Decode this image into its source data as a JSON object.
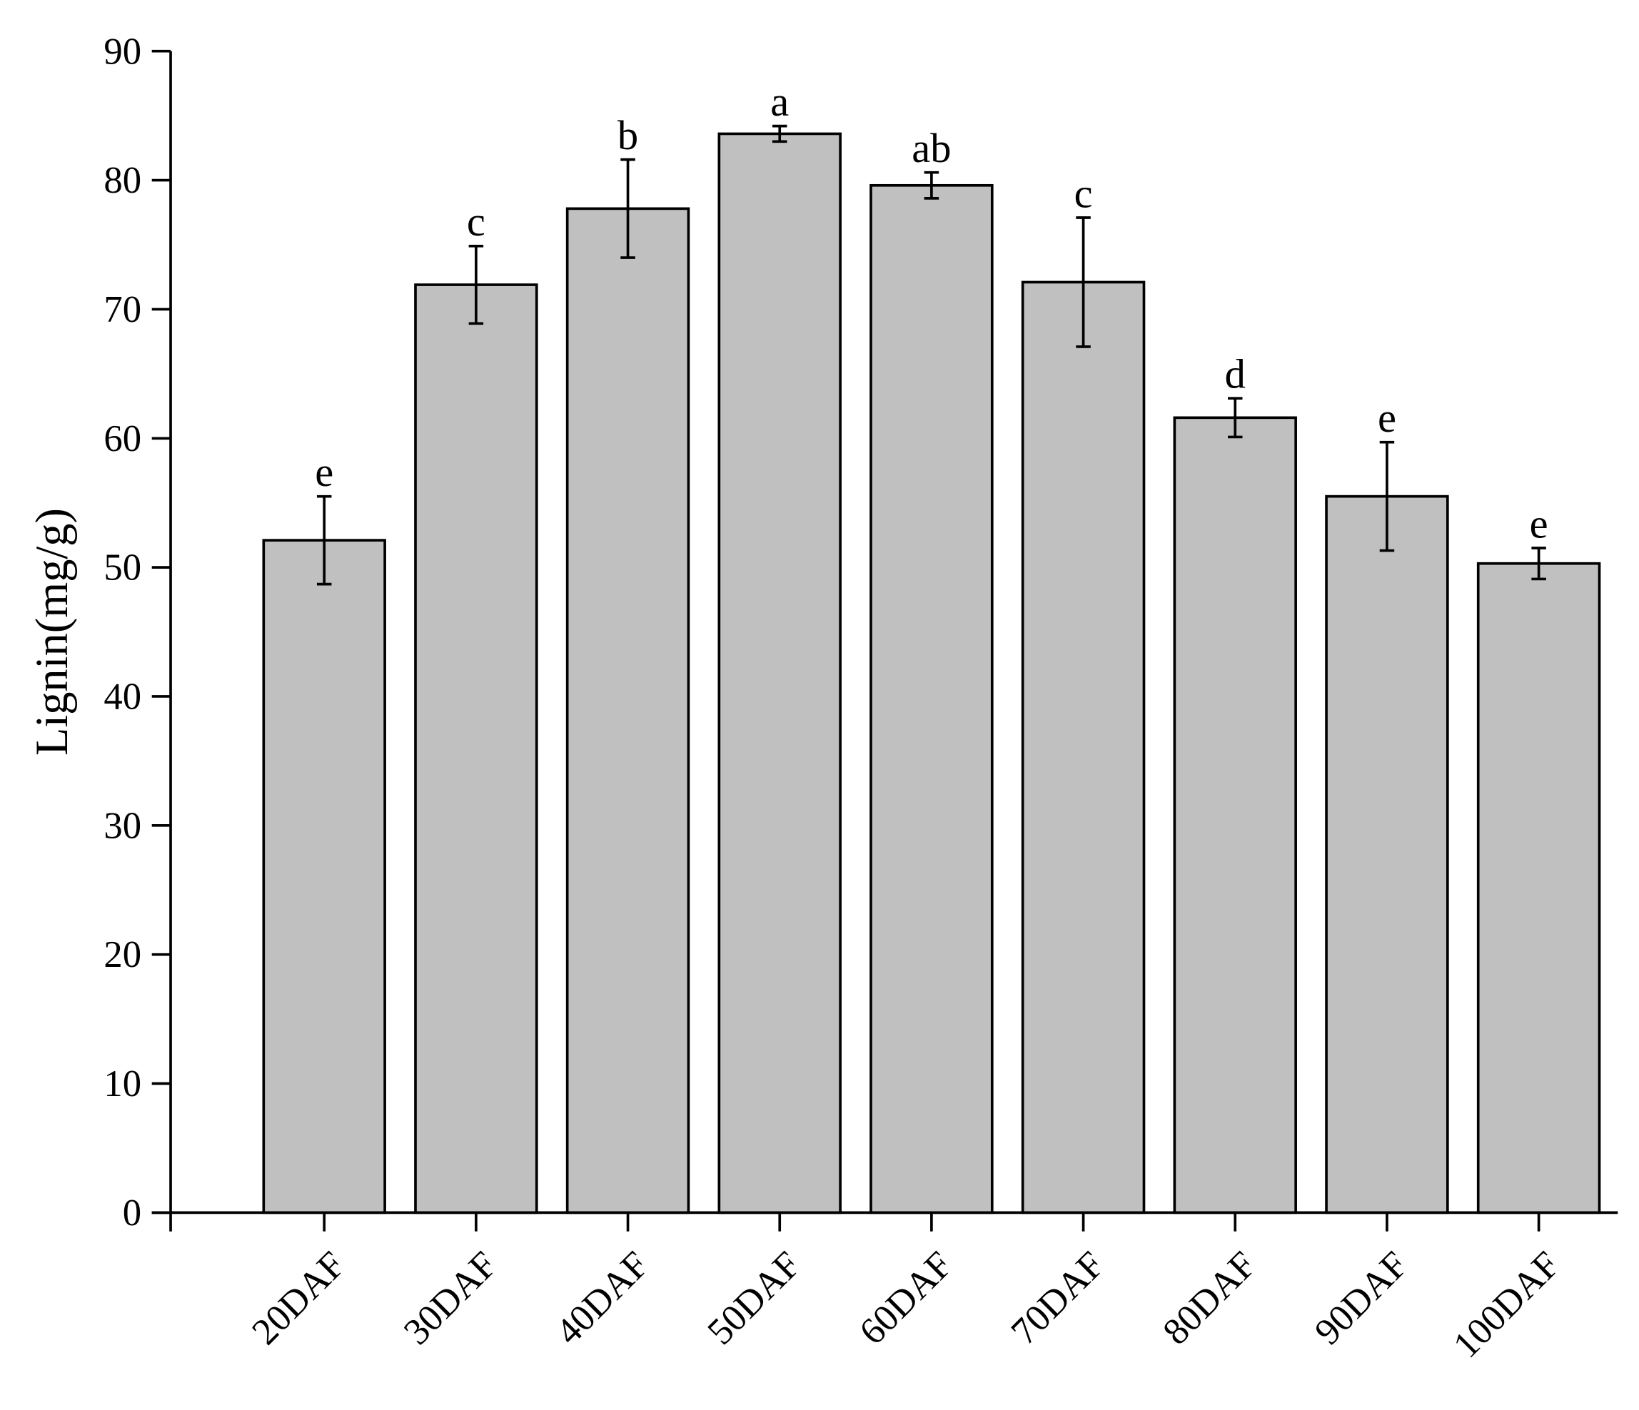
{
  "chart_data": {
    "type": "bar",
    "y_label": "Lignin(mg/g)",
    "categories": [
      "20DAF",
      "30DAF",
      "40DAF",
      "50DAF",
      "60DAF",
      "70DAF",
      "80DAF",
      "90DAF",
      "100DAF"
    ],
    "values": [
      52.1,
      71.9,
      77.8,
      83.6,
      79.6,
      72.1,
      61.6,
      55.5,
      50.3
    ],
    "errors": [
      3.4,
      3.0,
      3.8,
      0.6,
      1.0,
      5.0,
      1.5,
      4.2,
      1.2
    ],
    "annotations": [
      "e",
      "c",
      "b",
      "a",
      "ab",
      "c",
      "d",
      "e",
      "e"
    ],
    "color": "#c0c0c0",
    "ylim": [
      0,
      90
    ],
    "yticks": [
      0,
      10,
      20,
      30,
      40,
      50,
      60,
      70,
      80,
      90
    ],
    "grid": false
  }
}
